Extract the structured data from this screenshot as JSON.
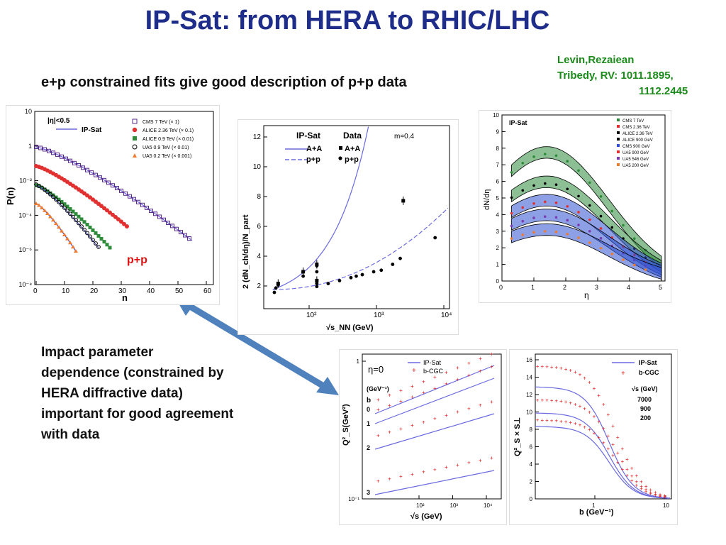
{
  "title": "IP-Sat: from HERA to RHIC/LHC",
  "subtitle": "e+p constrained fits give good description of p+p data",
  "reference": {
    "line1": "Levin,Rezaiean",
    "line2": "Tribedy, RV: 1011.1895,",
    "line3": "1112.2445"
  },
  "impact_text": [
    "Impact parameter",
    "dependence (constrained by",
    "HERA diffractive data)",
    "important for good agreement",
    "with data"
  ],
  "colors": {
    "title": "#1f2d8a",
    "reference": "#1a8a1a",
    "arrow": "#4f81bd",
    "theory": "#6a6ae0",
    "pp_label": "#e01010"
  },
  "panel_a": {
    "cut": "|η|<0.5",
    "model": "IP-Sat",
    "pp_label": "p+p",
    "xlabel": "n",
    "ylabel": "P(n)",
    "xticks": [
      "0",
      "10",
      "20",
      "30",
      "40",
      "50",
      "60"
    ],
    "yticks": [
      "10",
      "1",
      "10⁻²",
      "10⁻⁴",
      "10⁻⁶",
      "10⁻⁸"
    ],
    "legend": [
      "CMS 7 TeV (× 1)",
      "ALICE 2.36 TeV (× 0.1)",
      "ALICE 0.9 TeV (× 0.01)",
      "UA5 0.9 TeV (× 0.01)",
      "UA5 0.2 TeV (× 0.001)"
    ]
  },
  "panel_b": {
    "header_model": "IP-Sat",
    "header_data": "Data",
    "m_label": "m=0.4",
    "legend": [
      "A+A",
      "p+p",
      "A+A",
      "p+p"
    ],
    "xlabel": "√s_NN (GeV)",
    "ylabel": "2 (dN_ch/dη)/N_part",
    "xticks": [
      "10²",
      "10³",
      "10⁴"
    ],
    "yticks": [
      "2",
      "4",
      "6",
      "8",
      "10",
      "12"
    ]
  },
  "panel_c": {
    "model": "IP-Sat",
    "xlabel": "η",
    "ylabel": "dN/dη",
    "xticks": [
      "0",
      "1",
      "2",
      "3",
      "4",
      "5"
    ],
    "yticks": [
      "0",
      "1",
      "2",
      "3",
      "4",
      "5",
      "6",
      "7",
      "8",
      "9",
      "10"
    ],
    "legend": [
      "CMS 7 TeV",
      "CMS 2.36 TeV",
      "ALICE 2.36 TeV",
      "ALICE 900 GeV",
      "CMS 900 GeV",
      "UA5 900 GeV",
      "UA5 546 GeV",
      "UA5 200 GeV"
    ]
  },
  "panel_d": {
    "eta_label": "η=0",
    "legend": [
      "IP-Sat",
      "b-CGC"
    ],
    "unit": "(GeV⁻¹)",
    "b_label": "b",
    "curve_labels": [
      "0",
      "1",
      "2",
      "3"
    ],
    "xlabel": "√s (GeV)",
    "ylabel": "Q²_S(GeV²)",
    "xticks": [
      "10²",
      "10³",
      "10⁴"
    ],
    "yticks": [
      "10⁻¹",
      "1"
    ]
  },
  "panel_e": {
    "legend": [
      "IP-Sat",
      "b-CGC"
    ],
    "energy_header": "√s (GeV)",
    "energies": [
      "7000",
      "900",
      "200"
    ],
    "xlabel": "b (GeV⁻¹)",
    "ylabel": "Q²_S × S⊥",
    "xticks": [
      "1",
      "10"
    ],
    "yticks": [
      "0",
      "2",
      "4",
      "6",
      "8",
      "10",
      "12",
      "14",
      "16"
    ]
  }
}
